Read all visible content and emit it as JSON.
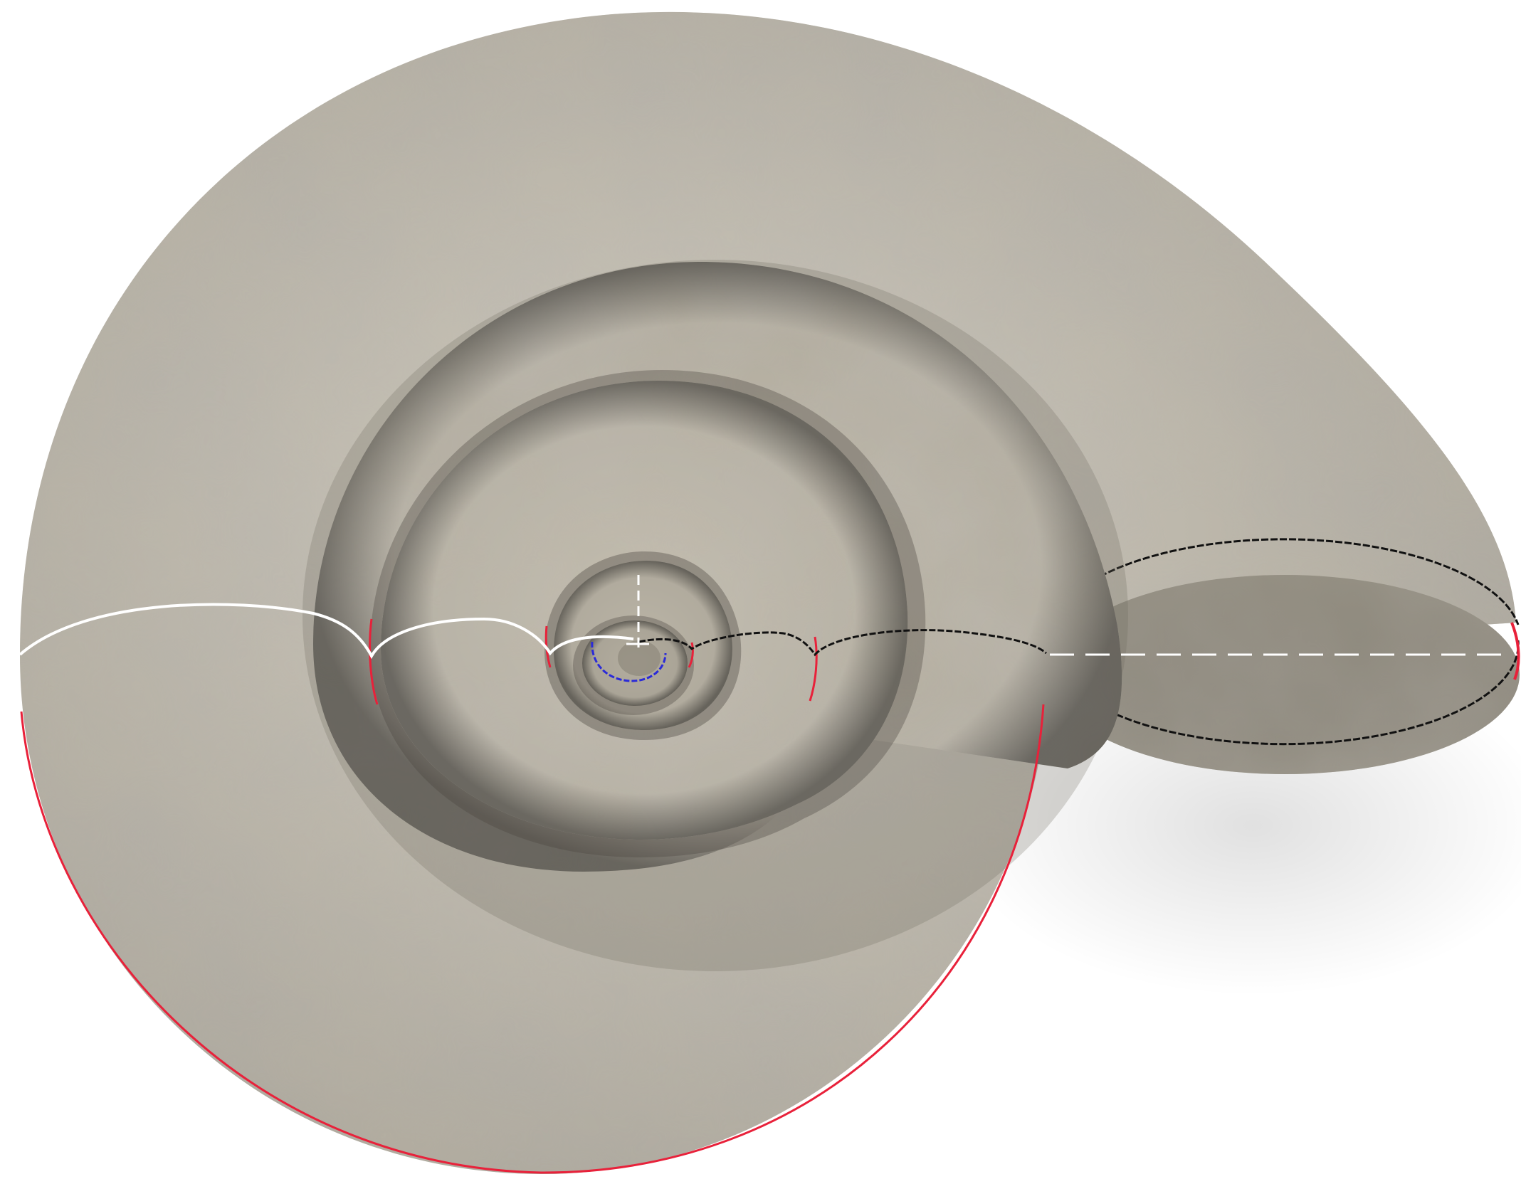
{
  "figure": {
    "kind": "3d-rendered-spiral-shell",
    "view": "top-down",
    "texture": "marble",
    "colors": {
      "background": "#ffffff",
      "shell_base": "#c9c3b6",
      "shell_vein": "#8a8373",
      "shell_shadow": "#5a564d",
      "aperture_face": "#a8a395",
      "suture_lower_curve": "#e8213a",
      "suture_white_curve": "#ffffff",
      "suture_black_curve": "#111111",
      "inner_curve": "#2a2ad8",
      "axis_dashes": "#ffffff"
    },
    "lines": {
      "cusp_curve_left": "white",
      "cusp_curve_right": "black",
      "outer_rim": "red",
      "innermost_curve": "blue",
      "horizontal_axis_dashed": "white",
      "vertical_axis_dashed": "white"
    }
  }
}
